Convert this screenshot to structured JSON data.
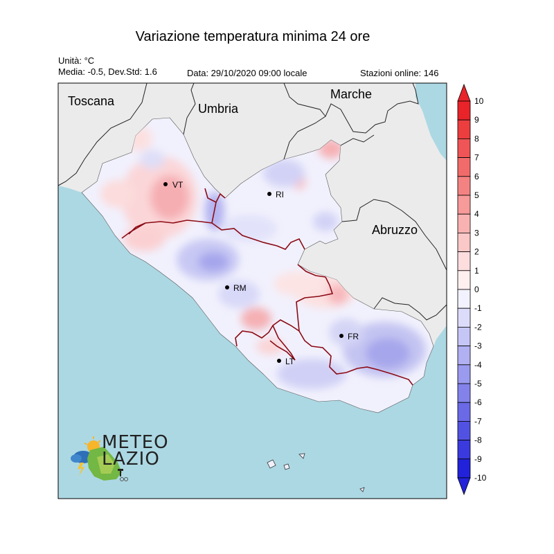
{
  "title": "Variazione temperatura minima 24 ore",
  "unit_label": "Unità: °C",
  "stats_label": "Media: -0.5, Dev.Std: 1.6",
  "date_label": "Data: 29/10/2020 09:00 locale",
  "stations_label": "Stazioni online: 146",
  "regions": [
    "Toscana",
    "Umbria",
    "Marche",
    "Abruzzo"
  ],
  "cities": [
    {
      "code": "VT"
    },
    {
      "code": "RI"
    },
    {
      "code": "RM"
    },
    {
      "code": "FR"
    },
    {
      "code": "LT"
    }
  ],
  "colorbar": {
    "labels": [
      "10",
      "9",
      "8",
      "7",
      "6",
      "5",
      "4",
      "3",
      "2",
      "1",
      "0",
      "-1",
      "-2",
      "-3",
      "-4",
      "-5",
      "-6",
      "-7",
      "-8",
      "-9",
      "-10"
    ],
    "colors": [
      "#e8242a",
      "#ec3e3e",
      "#ef5556",
      "#f26b6b",
      "#f48282",
      "#f79a9a",
      "#f9b2b2",
      "#fbc8c8",
      "#fdddde",
      "#fff0f0",
      "#f2f2ff",
      "#dcdcfa",
      "#c6c6f6",
      "#b0b0f2",
      "#9a9aee",
      "#8282ea",
      "#6a6ae6",
      "#5252e2",
      "#3a3ade",
      "#2222da"
    ],
    "max_color": "#e8242a",
    "min_color": "#2222da"
  },
  "colors": {
    "sea": "#acd8e3",
    "land": "#ebebeb",
    "lazio_base": "#f1f1fd",
    "region_border": "#8b0a14"
  },
  "logo": {
    "line1": "METEO",
    "line2": "LAZIO"
  }
}
